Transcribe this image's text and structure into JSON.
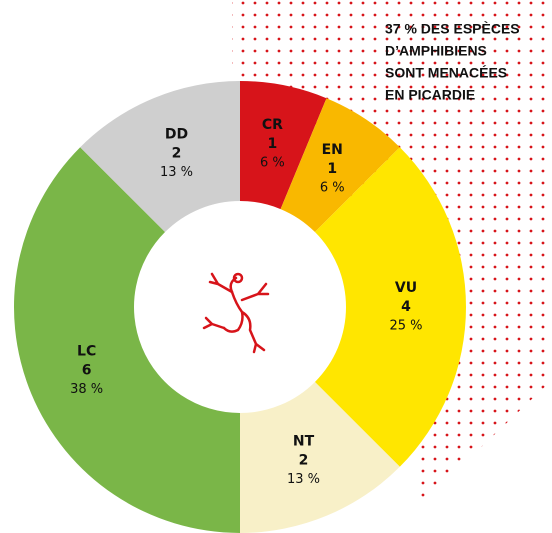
{
  "chart_data": {
    "type": "donut",
    "title_lines": [
      "37 % DES ESPÈCES",
      "D’AMPHIBIENS",
      "SONT MENACÉES",
      "EN PICARDIE"
    ],
    "categories": [
      "CR",
      "EN",
      "VU",
      "NT",
      "LC",
      "DD"
    ],
    "values": [
      1,
      1,
      4,
      2,
      6,
      2
    ],
    "percent_labels": [
      "6 %",
      "6 %",
      "25 %",
      "13 %",
      "38 %",
      "13 %"
    ],
    "colors": [
      "#d7141a",
      "#f9b800",
      "#ffe600",
      "#f8f0c8",
      "#7ab648",
      "#cfcfcf"
    ]
  }
}
